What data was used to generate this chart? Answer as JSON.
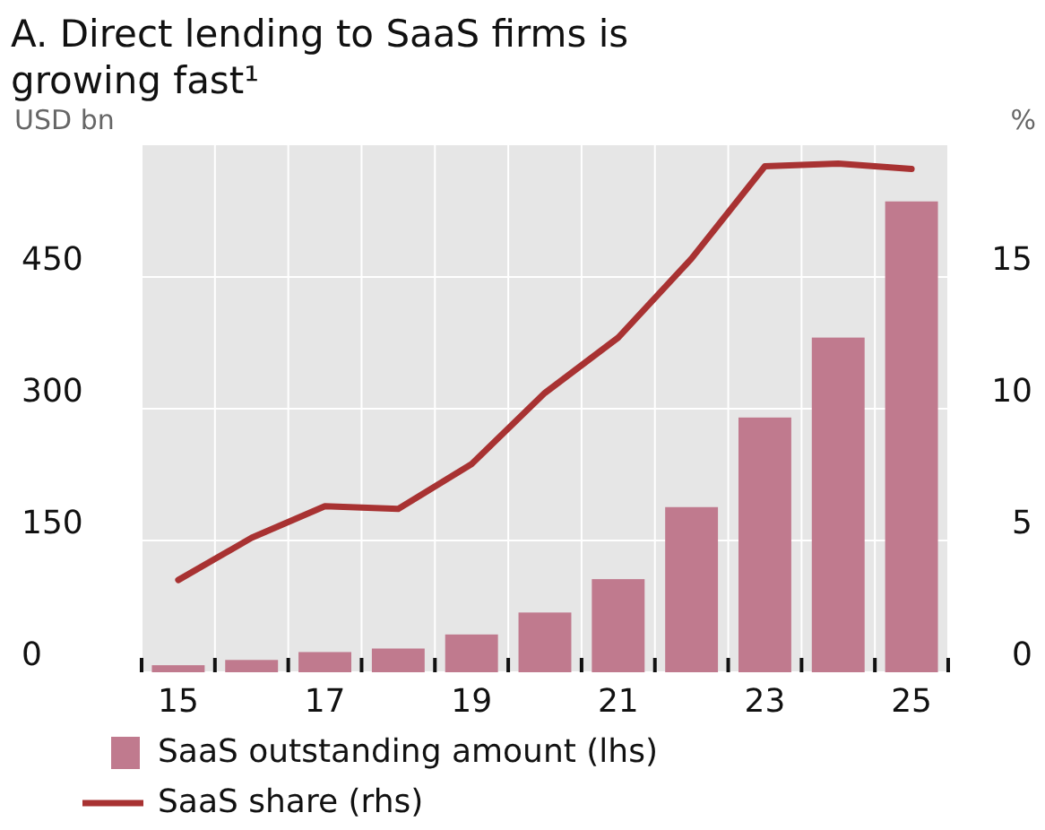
{
  "chart_data": {
    "type": "bar",
    "title": "A. Direct lending to SaaS firms is growing fast¹",
    "ylabel": "USD bn",
    "y2label": "%",
    "categories": [
      "15",
      null,
      "17",
      null,
      "19",
      null,
      "21",
      null,
      "23",
      null,
      "25"
    ],
    "series": [
      {
        "name": "SaaS outstanding amount (lhs)",
        "color": "#c07a8e",
        "values": [
          8,
          14,
          23,
          27,
          43,
          68,
          106,
          188,
          290,
          381,
          536
        ]
      },
      {
        "name": "SaaS share (rhs)",
        "type": "line",
        "axis": "y2",
        "color": "#a83232",
        "values": [
          3.5,
          5.1,
          6.3,
          6.2,
          7.9,
          10.6,
          12.7,
          15.7,
          19.2,
          19.3,
          19.1
        ]
      }
    ],
    "ylim": [
      0,
      600
    ],
    "yticks": [
      0,
      150,
      300,
      450
    ],
    "y2lim": [
      0,
      20
    ],
    "y2ticks": [
      0,
      5,
      10,
      15
    ],
    "grid": true,
    "legend": "bottom",
    "marker": "none",
    "line_style": "solid"
  }
}
